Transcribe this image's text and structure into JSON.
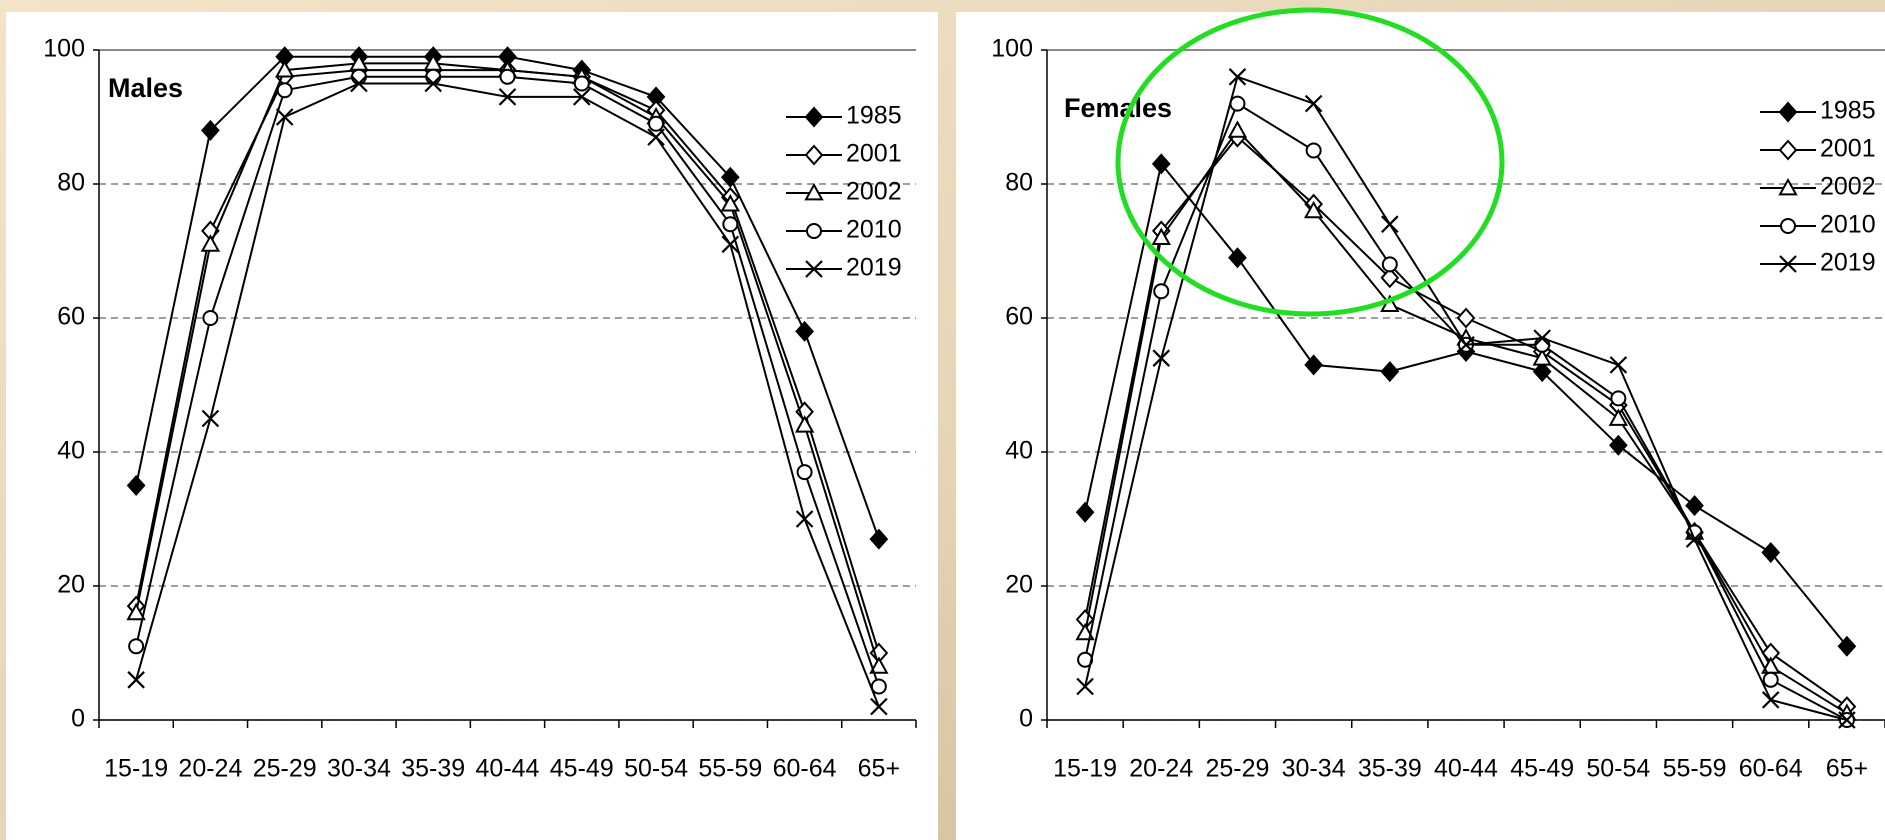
{
  "chart_data": [
    {
      "type": "line",
      "title": "Males",
      "categories": [
        "15-19",
        "20-24",
        "25-29",
        "30-34",
        "35-39",
        "40-44",
        "45-49",
        "50-54",
        "55-59",
        "60-64",
        "65+"
      ],
      "series": [
        {
          "name": "1985",
          "color": "#000000",
          "marker": "diamond-filled",
          "values": [
            35,
            88,
            99,
            99,
            99,
            99,
            97,
            93,
            81,
            58,
            27
          ]
        },
        {
          "name": "2001",
          "color": "#000000",
          "marker": "diamond",
          "values": [
            17,
            73,
            96,
            97,
            97,
            97,
            96,
            91,
            78,
            46,
            10
          ]
        },
        {
          "name": "2002",
          "color": "#000000",
          "marker": "triangle",
          "values": [
            16,
            71,
            97,
            98,
            98,
            97,
            96,
            90,
            77,
            44,
            8
          ]
        },
        {
          "name": "2010",
          "color": "#000000",
          "marker": "circle",
          "values": [
            11,
            60,
            94,
            96,
            96,
            96,
            95,
            89,
            74,
            37,
            5
          ]
        },
        {
          "name": "2019",
          "color": "#000000",
          "marker": "cross",
          "values": [
            6,
            45,
            90,
            95,
            95,
            93,
            93,
            87,
            71,
            30,
            2
          ]
        }
      ],
      "ylim": [
        0,
        100
      ],
      "yticks": [
        0,
        20,
        40,
        60,
        80,
        100
      ],
      "grid": true,
      "legend": "right"
    },
    {
      "type": "line",
      "title": "Females",
      "categories": [
        "15-19",
        "20-24",
        "25-29",
        "30-34",
        "35-39",
        "40-44",
        "45-49",
        "50-54",
        "55-59",
        "60-64",
        "65+"
      ],
      "series": [
        {
          "name": "1985",
          "color": "#000000",
          "marker": "diamond-filled",
          "values": [
            31,
            83,
            69,
            53,
            52,
            55,
            52,
            41,
            32,
            25,
            11
          ]
        },
        {
          "name": "2001",
          "color": "#000000",
          "marker": "diamond",
          "values": [
            15,
            73,
            87,
            77,
            66,
            60,
            55,
            47,
            28,
            10,
            2
          ]
        },
        {
          "name": "2002",
          "color": "#000000",
          "marker": "triangle",
          "values": [
            13,
            72,
            88,
            76,
            62,
            57,
            54,
            45,
            28,
            8,
            1
          ]
        },
        {
          "name": "2010",
          "color": "#000000",
          "marker": "circle",
          "values": [
            9,
            64,
            92,
            85,
            68,
            56,
            56,
            48,
            28,
            6,
            0
          ]
        },
        {
          "name": "2019",
          "color": "#000000",
          "marker": "cross",
          "values": [
            5,
            54,
            96,
            92,
            74,
            56,
            57,
            53,
            27,
            3,
            0
          ]
        }
      ],
      "ylim": [
        0,
        100
      ],
      "yticks": [
        0,
        20,
        40,
        60,
        80,
        100
      ],
      "grid": true,
      "legend": "right"
    }
  ]
}
